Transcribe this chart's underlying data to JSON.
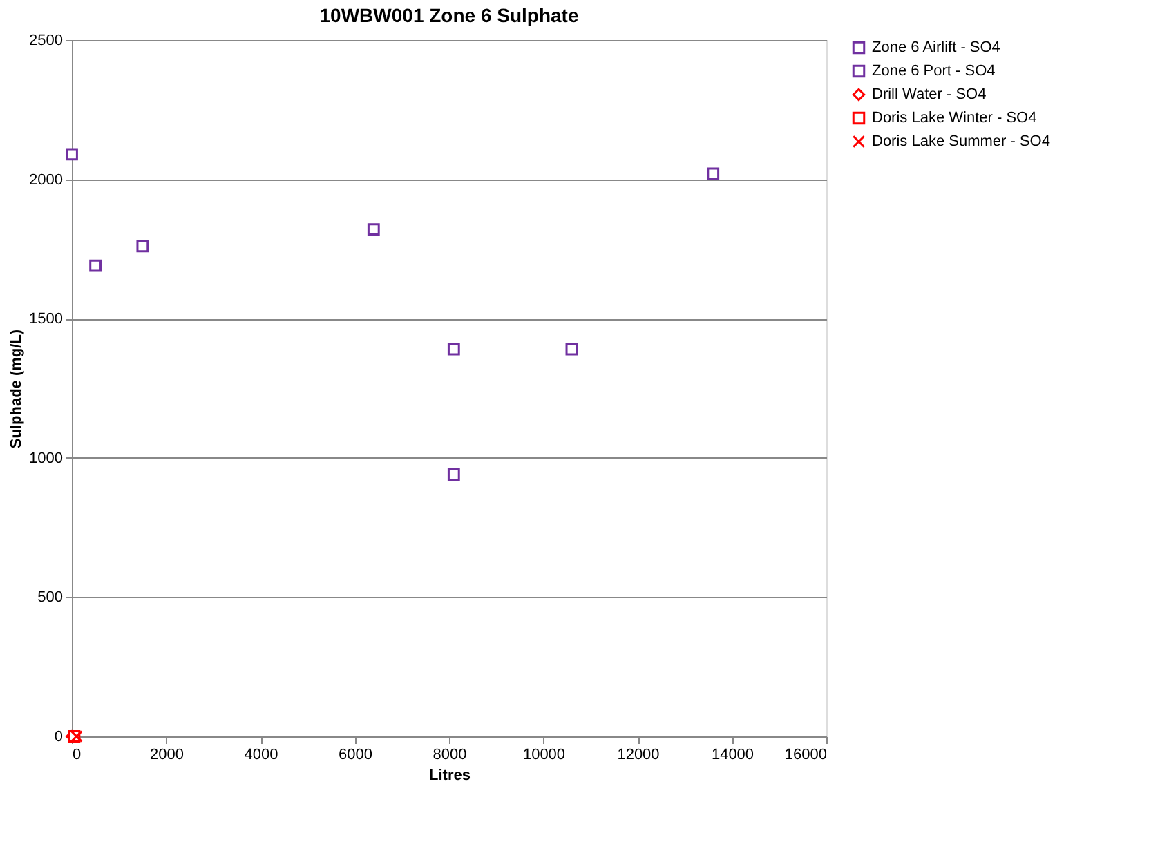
{
  "chart_data": {
    "type": "scatter",
    "title": "10WBW001 Zone 6 Sulphate",
    "xlabel": "Litres",
    "ylabel": "Sulphade (mg/L)",
    "xlim": [
      0,
      16000
    ],
    "xticks": [
      0,
      {
        "value": 2000,
        "label": "2000"
      },
      {
        "value": 4000,
        "label": "4000"
      },
      {
        "value": 6000,
        "label": "6000"
      },
      {
        "value": 8000,
        "label": "8000"
      },
      {
        "value": 10000,
        "label": "10000"
      },
      {
        "value": 12000,
        "label": "12000"
      },
      {
        "value": 14000,
        "label": "14000"
      },
      {
        "value": 16000,
        "label": "16000"
      }
    ],
    "ylim": [
      0,
      2500
    ],
    "yticks": [
      0,
      500,
      {
        "value": 1000,
        "label": "1000"
      },
      {
        "value": 1500,
        "label": "1500"
      },
      {
        "value": 2000,
        "label": "2000"
      },
      {
        "value": 2500,
        "label": "2500"
      }
    ],
    "grid": "y",
    "legend": "right",
    "series": [
      {
        "name": "Zone 6 Airlift - SO4",
        "color": "#7030a0",
        "marker": "square",
        "x": [
          500,
          1500,
          6400,
          10600,
          13600
        ],
        "values": [
          1690,
          1760,
          1820,
          1390,
          2020
        ]
      },
      {
        "name": "Zone 6 Port - SO4",
        "color": "#7030a0",
        "marker": "square",
        "x": [
          0,
          8100,
          8100
        ],
        "values": [
          2090,
          1390,
          940
        ]
      },
      {
        "name": "Drill Water - SO4",
        "color": "#ff0000",
        "marker": "diamond",
        "x": [
          0
        ],
        "values": [
          0
        ]
      },
      {
        "name": "Doris Lake Winter - SO4",
        "color": "#ff0000",
        "marker": "square",
        "x": [
          50
        ],
        "values": [
          0
        ]
      },
      {
        "name": "Doris Lake Summer - SO4",
        "color": "#ff0000",
        "marker": "cross",
        "x": [
          100
        ],
        "values": [
          0
        ]
      }
    ]
  }
}
